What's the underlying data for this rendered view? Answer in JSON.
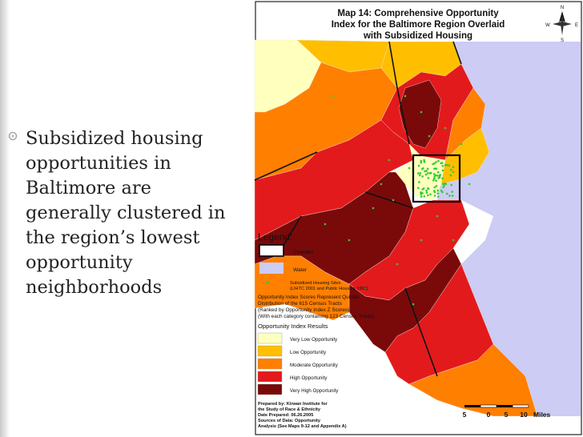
{
  "slide": {
    "bullet_text": "Subsidized housing opportunities in Baltimore are generally clustered in the region’s lowest opportunity neighborhoods"
  },
  "map": {
    "title_line1": "Map 14: Comprehensive Opportunity",
    "title_line2": "Index for the Baltimore Region Overlaid",
    "title_line3": "with Subsidized Housing",
    "compass": {
      "n": "N",
      "s": "S",
      "e": "E",
      "w": "W"
    },
    "legend": {
      "heading": "Legend:",
      "counties": "Counties",
      "water": "Water",
      "sites_line1": "Subsidized Housing Sites",
      "sites_line2": "(LIHTC 2001 and Public Housing 1998)",
      "desc_line1": "Opportunity Index Scores Represent Quintile",
      "desc_line2": "Distribution of the 615 Census Tracts",
      "desc_line3": "(Ranked by Opportunity Index Z Scores)",
      "desc_line4": "(With each category containing 123 Census Tracts)",
      "results_heading": "Opportunity Index Results",
      "categories": [
        {
          "label": "Very Low Opportunity",
          "color": "#ffffbe"
        },
        {
          "label": "Low Opportunity",
          "color": "#ffbf00"
        },
        {
          "label": "Moderate Opportunity",
          "color": "#ff7f00"
        },
        {
          "label": "High Opportunity",
          "color": "#e31a1c"
        },
        {
          "label": "Very High Opportunity",
          "color": "#7a0a0a"
        }
      ],
      "site_color": "#33cc33",
      "water_color": "#ccccf4"
    },
    "credits": {
      "line1": "Prepared by: Kirwan Institute for",
      "line2": "the Study of Race & Ethnicity",
      "line3": "Date Prepared: 06.26.2005",
      "line4": "Sources of Data: Opportunity",
      "line5": "Analysis (See Maps 9-12 and Appendix A)"
    },
    "scale": {
      "t1": "5",
      "t2": "0",
      "t3": "5",
      "t4": "10",
      "units": "Miles"
    }
  }
}
